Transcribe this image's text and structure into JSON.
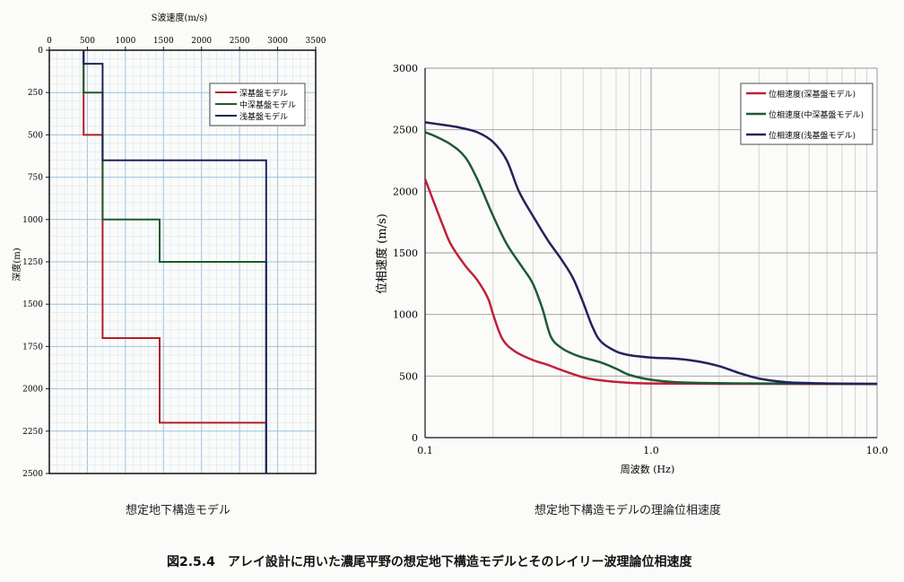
{
  "figure_caption": "図2.5.4　アレイ設計に用いた濃尾平野の想定地下構造モデルとそのレイリー波理論位相速度",
  "chart_data": [
    {
      "type": "line",
      "caption": "想定地下構造モデル",
      "xlabel": "S波速度(m/s)",
      "ylabel": "深度(m)",
      "xlim": [
        0,
        3500
      ],
      "ylim": [
        0,
        2500
      ],
      "y_inverted": true,
      "x_ticks": [
        0,
        500,
        1000,
        1500,
        2000,
        2500,
        3000,
        3500
      ],
      "y_ticks": [
        0,
        250,
        500,
        750,
        1000,
        1250,
        1500,
        1750,
        2000,
        2250,
        2500
      ],
      "x_tick_labels": [
        "0",
        "500",
        "1000",
        "1500",
        "2000",
        "2500",
        "3000",
        "3500"
      ],
      "y_tick_labels": [
        "0",
        "250",
        "500",
        "750",
        "1000",
        "1250",
        "1500",
        "1750",
        "2000",
        "2250",
        "2500"
      ],
      "grid": true,
      "legend_position": "top-right",
      "series": [
        {
          "name": "深基盤モデル",
          "color": "#b0202a",
          "x": [
            450,
            450,
            700,
            700,
            1450,
            1450,
            2850,
            2850
          ],
          "y": [
            0,
            500,
            500,
            1700,
            1700,
            2200,
            2200,
            2500
          ]
        },
        {
          "name": "中深基盤モデル",
          "color": "#1d5a2e",
          "x": [
            450,
            450,
            700,
            700,
            1450,
            1450,
            2850,
            2850
          ],
          "y": [
            0,
            250,
            250,
            1000,
            1000,
            1250,
            1250,
            2500
          ]
        },
        {
          "name": "浅基盤モデル",
          "color": "#1d2455",
          "x": [
            450,
            450,
            700,
            700,
            2850,
            2850
          ],
          "y": [
            0,
            80,
            80,
            650,
            650,
            2500
          ]
        }
      ]
    },
    {
      "type": "line",
      "caption": "想定地下構造モデルの理論位相速度",
      "xlabel": "周波数 (Hz)",
      "ylabel": "位相速度 (m/s)",
      "x_scale": "log",
      "xlim": [
        0.1,
        10.0
      ],
      "ylim": [
        0,
        3000
      ],
      "x_ticks": [
        0.1,
        1.0,
        10.0
      ],
      "y_ticks": [
        0,
        500,
        1000,
        1500,
        2000,
        2500,
        3000
      ],
      "x_tick_labels": [
        "0.1",
        "1.0",
        "10.0"
      ],
      "y_tick_labels": [
        "0",
        "500",
        "1000",
        "1500",
        "2000",
        "2500",
        "3000"
      ],
      "grid": true,
      "legend_position": "top-right",
      "series": [
        {
          "name": "位相速度(深基盤モデル)",
          "color": "#c0203a",
          "x": [
            0.1,
            0.11,
            0.12,
            0.13,
            0.15,
            0.17,
            0.19,
            0.2,
            0.22,
            0.25,
            0.3,
            0.35,
            0.4,
            0.5,
            0.6,
            0.8,
            1.0,
            1.5,
            2.0,
            3.0,
            5.0,
            10.0
          ],
          "y": [
            2100,
            1900,
            1720,
            1570,
            1400,
            1280,
            1130,
            1000,
            800,
            700,
            630,
            590,
            550,
            490,
            465,
            445,
            440,
            438,
            437,
            437,
            436,
            436
          ]
        },
        {
          "name": "位相速度(中深基盤モデル)",
          "color": "#1f5a35",
          "x": [
            0.1,
            0.11,
            0.13,
            0.15,
            0.17,
            0.2,
            0.23,
            0.27,
            0.3,
            0.33,
            0.36,
            0.4,
            0.45,
            0.5,
            0.6,
            0.7,
            0.8,
            1.0,
            1.3,
            2.0,
            3.0,
            5.0,
            10.0
          ],
          "y": [
            2480,
            2450,
            2380,
            2280,
            2100,
            1800,
            1570,
            1380,
            1250,
            1050,
            820,
            730,
            680,
            650,
            610,
            560,
            510,
            470,
            450,
            442,
            440,
            438,
            436
          ]
        },
        {
          "name": "位相速度(浅基盤モデル)",
          "color": "#25225a",
          "x": [
            0.1,
            0.12,
            0.14,
            0.17,
            0.2,
            0.23,
            0.26,
            0.3,
            0.35,
            0.4,
            0.45,
            0.5,
            0.55,
            0.6,
            0.7,
            0.8,
            1.0,
            1.3,
            1.6,
            2.0,
            2.5,
            3.0,
            4.0,
            6.0,
            10.0
          ],
          "y": [
            2560,
            2540,
            2520,
            2480,
            2400,
            2250,
            2000,
            1800,
            1600,
            1450,
            1300,
            1100,
            900,
            780,
            700,
            670,
            650,
            640,
            620,
            580,
            520,
            480,
            450,
            440,
            436
          ]
        }
      ]
    }
  ]
}
